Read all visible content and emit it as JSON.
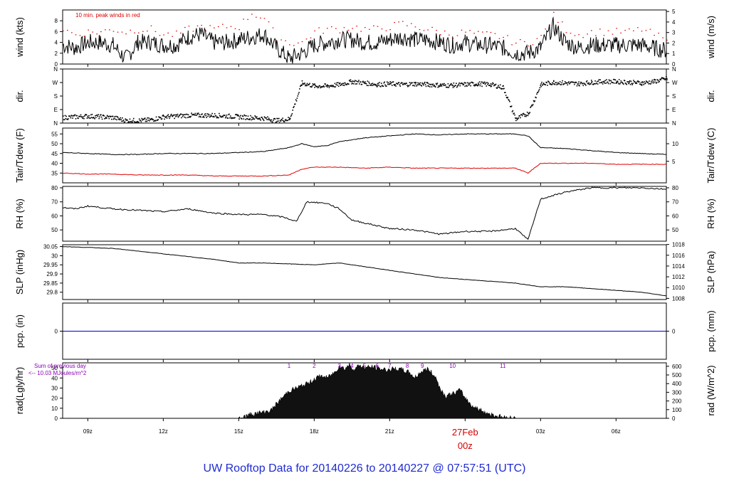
{
  "page": {
    "title": "UW Rooftop Data for 20140226  to  20140227 @ 07:57:51  (UTC)",
    "colors": {
      "title": "#1f2bd1",
      "peak": "#e00000",
      "dewpoint": "#e00000",
      "precip": "#0000cc",
      "rad_labels": "#8b00b5",
      "date_label": "#d40000"
    }
  },
  "chart_data": {
    "type": "line",
    "time_axis": {
      "tick_labels": [
        "09z",
        "12z",
        "15z",
        "18z",
        "21z",
        "00z",
        "03z",
        "06z"
      ],
      "tick_hours": [
        9,
        12,
        15,
        18,
        21,
        24,
        27,
        30
      ],
      "range_hours": [
        8.0,
        32.0
      ],
      "date_label": "27Feb",
      "date_tick_label": "00z"
    },
    "panels": [
      {
        "key": "wind",
        "ylabel_left": "wind (kts)",
        "ylabel_right": "wind (m/s)",
        "ylim": [
          0,
          10
        ],
        "left_ticks": [
          0,
          2,
          4,
          6,
          8
        ],
        "right_ticks": [
          0,
          1,
          2,
          3,
          4,
          5
        ],
        "annotation": "10 min. peak winds in red",
        "series": [
          {
            "name": "",
            "x": [
              8,
              8.5,
              9,
              9.5,
              10,
              10.5,
              11,
              11.5,
              12,
              12.5,
              13,
              13.5,
              14,
              14.5,
              15,
              15.5,
              16,
              16.5,
              17,
              17.5,
              18,
              18.5,
              19,
              19.5,
              20,
              20.5,
              21,
              21.5,
              22,
              22.5,
              23,
              23.5,
              24,
              24.5,
              25,
              25.5,
              26,
              26.5,
              27,
              27.5,
              28,
              28.5,
              29,
              29.5,
              30,
              30.5,
              31,
              31.5,
              32
            ],
            "y": [
              3.5,
              3,
              4,
              4,
              3.5,
              1,
              4,
              4,
              3.5,
              3.5,
              5,
              5.5,
              4,
              4,
              4.5,
              5,
              5.5,
              3,
              1,
              2,
              3.5,
              4,
              4.5,
              4.5,
              4,
              4,
              4.5,
              5,
              4.5,
              4.5,
              4,
              3.5,
              4,
              3.5,
              3.5,
              3,
              2,
              2,
              3,
              7,
              4,
              3,
              3.5,
              3.5,
              3.5,
              3.5,
              3.5,
              3,
              2.5
            ]
          },
          {
            "name": "",
            "x": [
              8,
              8.5,
              9,
              9.5,
              10,
              10.5,
              11,
              11.5,
              12,
              12.5,
              13,
              13.5,
              14,
              14.5,
              15,
              15.5,
              16,
              16.5,
              17,
              17.5,
              18,
              18.5,
              19,
              19.5,
              20,
              20.5,
              21,
              21.5,
              22,
              22.5,
              23,
              23.5,
              24,
              24.5,
              25,
              25.5,
              26,
              26.5,
              27,
              27.5,
              28,
              28.5,
              29,
              29.5,
              30,
              30.5,
              31,
              31.5,
              32
            ],
            "y": [
              6.5,
              5.5,
              6,
              6,
              6.5,
              6,
              6.5,
              6.5,
              5.5,
              5.5,
              6.5,
              7,
              6.5,
              7,
              7,
              9.5,
              8.5,
              5,
              4,
              4,
              6,
              6.5,
              6.5,
              7,
              6.5,
              6.5,
              7,
              7.5,
              7,
              6.5,
              6,
              5.5,
              6,
              5.5,
              5.5,
              5,
              4,
              4,
              5,
              9,
              6.5,
              5.5,
              6,
              6,
              6,
              6,
              6.5,
              5.5,
              4.5
            ]
          }
        ]
      },
      {
        "key": "dir",
        "ylabel_left": "dir.",
        "ylabel_right": "dir.",
        "ylim": [
          0,
          360
        ],
        "left_tick_labels": [
          "N",
          "E",
          "S",
          "W",
          "N"
        ],
        "right_tick_labels": [
          "N",
          "E",
          "S",
          "W",
          "N"
        ],
        "series": [
          {
            "name": "",
            "x": [
              8,
              8.5,
              9,
              9.5,
              10,
              10.5,
              11,
              11.5,
              12,
              12.5,
              13,
              13.5,
              14,
              14.5,
              15,
              15.5,
              16,
              16.5,
              17,
              17.5,
              18,
              18.5,
              19,
              19.5,
              20,
              20.5,
              21,
              21.5,
              22,
              22.5,
              23,
              23.5,
              24,
              24.5,
              25,
              25.5,
              26,
              26.5,
              27,
              27.5,
              28,
              28.5,
              29,
              29.5,
              30,
              30.5,
              31,
              31.5,
              32
            ],
            "y": [
              40,
              45,
              50,
              45,
              40,
              20,
              20,
              25,
              45,
              50,
              55,
              55,
              55,
              50,
              45,
              40,
              35,
              20,
              30,
              270,
              250,
              250,
              260,
              280,
              270,
              260,
              265,
              260,
              265,
              260,
              255,
              255,
              260,
              265,
              260,
              240,
              30,
              70,
              260,
              275,
              270,
              265,
              275,
              280,
              280,
              275,
              270,
              280,
              300
            ]
          }
        ]
      },
      {
        "key": "temp",
        "ylabel_left": "Tair/Tdew (F)",
        "ylabel_right": "Tair/Tdew (C)",
        "ylim": [
          30,
          58
        ],
        "left_ticks": [
          35,
          40,
          45,
          50,
          55
        ],
        "right_ticks": [
          5,
          10
        ],
        "series": [
          {
            "name": "",
            "x": [
              8,
              9,
              10,
              11,
              12,
              13,
              14,
              15,
              16,
              17,
              17.5,
              18,
              18.5,
              19,
              20,
              21,
              22,
              23,
              24,
              25,
              26,
              26.5,
              27,
              28,
              29,
              30,
              31,
              32
            ],
            "y": [
              45.5,
              45,
              44.5,
              44.5,
              45,
              45,
              45,
              45.5,
              46,
              48,
              50,
              48.5,
              49,
              51,
              53,
              54,
              55,
              54.5,
              55,
              55,
              55,
              54,
              48,
              47.5,
              46.5,
              45.5,
              45,
              44.5
            ]
          },
          {
            "name": "",
            "x": [
              8,
              9,
              10,
              11,
              12,
              13,
              14,
              15,
              16,
              17,
              17.5,
              18,
              18.5,
              19,
              20,
              21,
              22,
              23,
              24,
              25,
              26,
              26.5,
              27,
              28,
              29,
              30,
              31,
              32
            ],
            "y": [
              35,
              34.5,
              34.5,
              34,
              34,
              34,
              33.5,
              33.5,
              33.5,
              34,
              37,
              38,
              38,
              38,
              37.5,
              38,
              37.5,
              37.5,
              37.5,
              37.5,
              37.5,
              35,
              40,
              40,
              40,
              39.5,
              39.5,
              39.5
            ]
          }
        ]
      },
      {
        "key": "rh",
        "ylabel_left": "RH (%)",
        "ylabel_right": "RH (%)",
        "ylim": [
          42,
          81
        ],
        "left_ticks": [
          50,
          60,
          70,
          80
        ],
        "right_ticks": [
          50,
          60,
          70,
          80
        ],
        "series": [
          {
            "name": "",
            "x": [
              8,
              8.5,
              9,
              10,
              11,
              12,
              13,
              14,
              15,
              16,
              16.8,
              17.3,
              17.7,
              18.5,
              19,
              19.5,
              20,
              21,
              22,
              23,
              24,
              25,
              26,
              26.5,
              27,
              28,
              29,
              30,
              31,
              32
            ],
            "y": [
              66,
              65,
              67,
              65,
              64,
              63,
              65,
              62,
              61,
              61,
              59,
              56,
              70,
              69,
              65,
              57,
              55,
              51,
              50,
              47,
              49,
              49,
              51,
              43,
              72,
              77,
              80,
              80,
              80,
              79
            ]
          }
        ]
      },
      {
        "key": "slp",
        "ylabel_left": "SLP (inHg)",
        "ylabel_right": "SLP (hPa)",
        "ylim": [
          29.76,
          30.06
        ],
        "left_ticks": [
          29.8,
          29.85,
          29.9,
          29.95,
          30.0,
          30.05
        ],
        "right_ticks": [
          1008,
          1010,
          1012,
          1014,
          1016,
          1018
        ],
        "series": [
          {
            "name": "",
            "x": [
              8,
              10,
              12,
              14,
              15,
              16,
              18,
              19,
              20,
              21,
              22,
              23,
              24,
              25,
              26,
              27,
              28,
              29,
              30,
              31,
              32
            ],
            "y": [
              30.05,
              30.04,
              30.01,
              29.98,
              29.96,
              29.96,
              29.95,
              29.96,
              29.94,
              29.92,
              29.9,
              29.88,
              29.87,
              29.86,
              29.85,
              29.83,
              29.83,
              29.82,
              29.81,
              29.8,
              29.78
            ]
          }
        ]
      },
      {
        "key": "pcp",
        "ylabel_left": "pcp. (in)",
        "ylabel_right": "pcp. (mm)",
        "ylim": [
          -1,
          1
        ],
        "left_ticks": [
          0
        ],
        "right_ticks": [
          0
        ],
        "series": [
          {
            "name": "",
            "x": [
              8,
              32
            ],
            "y": [
              0,
              0
            ]
          }
        ]
      },
      {
        "key": "rad",
        "ylabel_left": "rad(Lgly/hr)",
        "ylabel_right": "rad (W/m^2)",
        "ylim": [
          0,
          55
        ],
        "left_ticks": [
          0,
          10,
          20,
          30,
          40,
          50
        ],
        "right_ticks": [
          0,
          100,
          200,
          300,
          400,
          500,
          600
        ],
        "annotation_lines": [
          "Sum of previous day",
          "<-- 10.03 MJoules/m^2"
        ],
        "hour_labels": [
          "1",
          "2",
          "3",
          "4",
          "5",
          "6",
          "7",
          "8",
          "9",
          "10",
          "11"
        ],
        "hour_label_x": [
          17,
          18,
          19,
          19.5,
          20,
          20.5,
          21,
          21.7,
          22.3,
          23.5,
          25.5
        ],
        "series": [
          {
            "name": "",
            "x": [
              15,
              15.3,
              15.5,
              16,
              16.3,
              16.5,
              16.8,
              17,
              17.3,
              17.5,
              17.8,
              18,
              18.3,
              18.5,
              18.8,
              19,
              19.2,
              19.4,
              19.6,
              19.8,
              20,
              20.3,
              20.6,
              20.9,
              21.2,
              21.5,
              21.8,
              22,
              22.2,
              22.5,
              22.8,
              23,
              23.2,
              23.5,
              23.8,
              24,
              24.3,
              24.6,
              25,
              25.5,
              26
            ],
            "y": [
              0,
              2,
              4,
              6,
              8,
              14,
              22,
              27,
              30,
              32,
              35,
              39,
              42,
              40,
              45,
              52,
              49,
              53,
              48,
              53,
              50,
              51,
              49,
              48,
              49,
              48,
              45,
              40,
              45,
              49,
              42,
              30,
              22,
              24,
              28,
              20,
              12,
              8,
              4,
              1,
              0
            ]
          }
        ]
      }
    ]
  }
}
